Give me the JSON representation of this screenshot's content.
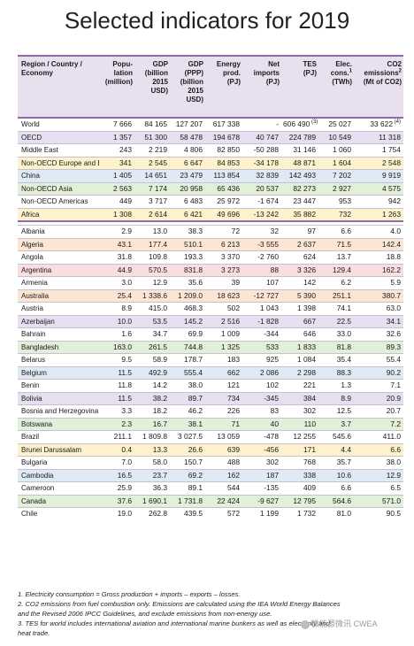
{
  "title": "Selected indicators for 2019",
  "header": {
    "col0": "Region / Country / Economy",
    "col1": "Popu-lation",
    "col1_unit": "(million)",
    "col2": "GDP",
    "col2_unit": "(billion 2015 USD)",
    "col3": "GDP (PPP)",
    "col3_unit": "(billion 2015 USD)",
    "col4": "Energy prod.",
    "col4_unit": "(PJ)",
    "col5": "Net imports",
    "col5_unit": "(PJ)",
    "col6": "TES",
    "col6_unit": "(PJ)",
    "col7": "Elec. cons.",
    "col7_sup": "1",
    "col7_unit": "(TWh)",
    "col8": "CO2 emissions",
    "col8_sup": "2",
    "col8_unit": "(Mt of CO2)"
  },
  "colors": {
    "header_bg": "#e8e0ef",
    "rule": "#8e6aa8",
    "palette": [
      "#ffffff",
      "#e6dff0",
      "#fbe6d4",
      "#e2efd9",
      "#dfeaf5",
      "#fdf2cc",
      "#f8dede"
    ]
  },
  "regions": [
    {
      "name": "World",
      "pop": "7 666",
      "gdp": "84 165",
      "gdpppp": "127 207",
      "prod": "617 338",
      "imp": "-",
      "tes": "606 490",
      "tes_note": "(3)",
      "elec": "25 027",
      "co2": "33 622",
      "co2_note": "(4)",
      "bg": 0
    },
    {
      "name": "OECD",
      "pop": "1 357",
      "gdp": "51 300",
      "gdpppp": "58 478",
      "prod": "194 678",
      "imp": "40 747",
      "tes": "224 789",
      "elec": "10 549",
      "co2": "11 318",
      "bg": 1
    },
    {
      "name": "Middle East",
      "pop": "243",
      "gdp": "2 219",
      "gdpppp": "4 806",
      "prod": "82 850",
      "imp": "-50 288",
      "tes": "31 146",
      "elec": "1 060",
      "co2": "1 754",
      "bg": 0
    },
    {
      "name": "Non-OECD Europe and Eurasia",
      "pop": "341",
      "gdp": "2 545",
      "gdpppp": "6 647",
      "prod": "84 853",
      "imp": "-34 178",
      "tes": "48 871",
      "elec": "1 604",
      "co2": "2 548",
      "bg": 5
    },
    {
      "name": "China",
      "pop": "1 405",
      "gdp": "14 651",
      "gdpppp": "23 479",
      "prod": "113 854",
      "imp": "32 839",
      "tes": "142 493",
      "elec": "7 202",
      "co2": "9 919",
      "bg": 4
    },
    {
      "name": "Non-OECD Asia",
      "pop": "2 563",
      "gdp": "7 174",
      "gdpppp": "20 958",
      "prod": "65 436",
      "imp": "20 537",
      "tes": "82 273",
      "elec": "2 927",
      "co2": "4 575",
      "bg": 3
    },
    {
      "name": "Non-OECD Americas",
      "pop": "449",
      "gdp": "3 717",
      "gdpppp": "6 483",
      "prod": "25 972",
      "imp": "-1 674",
      "tes": "23 447",
      "elec": "953",
      "co2": "942",
      "bg": 0
    },
    {
      "name": "Africa",
      "pop": "1 308",
      "gdp": "2 614",
      "gdpppp": "6 421",
      "prod": "49 696",
      "imp": "-13 242",
      "tes": "35 882",
      "elec": "732",
      "co2": "1 263",
      "bg": 5
    }
  ],
  "countries": [
    {
      "name": "Albania",
      "pop": "2.9",
      "gdp": "13.0",
      "gdpppp": "38.3",
      "prod": "72",
      "imp": "32",
      "tes": "97",
      "elec": "6.6",
      "co2": "4.0",
      "bg": 0
    },
    {
      "name": "Algeria",
      "pop": "43.1",
      "gdp": "177.4",
      "gdpppp": "510.1",
      "prod": "6 213",
      "imp": "-3 555",
      "tes": "2 637",
      "elec": "71.5",
      "co2": "142.4",
      "bg": 2
    },
    {
      "name": "Angola",
      "pop": "31.8",
      "gdp": "109.8",
      "gdpppp": "193.3",
      "prod": "3 370",
      "imp": "-2 760",
      "tes": "624",
      "elec": "13.7",
      "co2": "18.8",
      "bg": 0
    },
    {
      "name": "Argentina",
      "pop": "44.9",
      "gdp": "570.5",
      "gdpppp": "831.8",
      "prod": "3 273",
      "imp": "88",
      "tes": "3 326",
      "elec": "129.4",
      "co2": "162.2",
      "bg": 6
    },
    {
      "name": "Armenia",
      "pop": "3.0",
      "gdp": "12.9",
      "gdpppp": "35.6",
      "prod": "39",
      "imp": "107",
      "tes": "142",
      "elec": "6.2",
      "co2": "5.9",
      "bg": 0
    },
    {
      "name": "Australia",
      "pop": "25.4",
      "gdp": "1 338.6",
      "gdpppp": "1 209.0",
      "prod": "18 623",
      "imp": "-12 727",
      "tes": "5 390",
      "elec": "251.1",
      "co2": "380.7",
      "bg": 2
    },
    {
      "name": "Austria",
      "pop": "8.9",
      "gdp": "415.0",
      "gdpppp": "468.3",
      "prod": "502",
      "imp": "1 043",
      "tes": "1 398",
      "elec": "74.1",
      "co2": "63.0",
      "bg": 0
    },
    {
      "name": "Azerbaijan",
      "pop": "10.0",
      "gdp": "53.5",
      "gdpppp": "145.2",
      "prod": "2 516",
      "imp": "-1 828",
      "tes": "667",
      "elec": "22.5",
      "co2": "34.1",
      "bg": 1
    },
    {
      "name": "Bahrain",
      "pop": "1.6",
      "gdp": "34.7",
      "gdpppp": "69.9",
      "prod": "1 009",
      "imp": "-344",
      "tes": "646",
      "elec": "33.0",
      "co2": "32.6",
      "bg": 0
    },
    {
      "name": "Bangladesh",
      "pop": "163.0",
      "gdp": "261.5",
      "gdpppp": "744.8",
      "prod": "1 325",
      "imp": "533",
      "tes": "1 833",
      "elec": "81.8",
      "co2": "89.3",
      "bg": 3
    },
    {
      "name": "Belarus",
      "pop": "9.5",
      "gdp": "58.9",
      "gdpppp": "178.7",
      "prod": "183",
      "imp": "925",
      "tes": "1 084",
      "elec": "35.4",
      "co2": "55.4",
      "bg": 0
    },
    {
      "name": "Belgium",
      "pop": "11.5",
      "gdp": "492.9",
      "gdpppp": "555.4",
      "prod": "662",
      "imp": "2 086",
      "tes": "2 298",
      "elec": "88.3",
      "co2": "90.2",
      "bg": 4
    },
    {
      "name": "Benin",
      "pop": "11.8",
      "gdp": "14.2",
      "gdpppp": "38.0",
      "prod": "121",
      "imp": "102",
      "tes": "221",
      "elec": "1.3",
      "co2": "7.1",
      "bg": 0
    },
    {
      "name": "Bolivia",
      "pop": "11.5",
      "gdp": "38.2",
      "gdpppp": "89.7",
      "prod": "734",
      "imp": "-345",
      "tes": "384",
      "elec": "8.9",
      "co2": "20.9",
      "bg": 1
    },
    {
      "name": "Bosnia and Herzegovina",
      "pop": "3.3",
      "gdp": "18.2",
      "gdpppp": "46.2",
      "prod": "226",
      "imp": "83",
      "tes": "302",
      "elec": "12.5",
      "co2": "20.7",
      "bg": 0
    },
    {
      "name": "Botswana",
      "pop": "2.3",
      "gdp": "16.7",
      "gdpppp": "38.1",
      "prod": "71",
      "imp": "40",
      "tes": "110",
      "elec": "3.7",
      "co2": "7.2",
      "bg": 3
    },
    {
      "name": "Brazil",
      "pop": "211.1",
      "gdp": "1 809.8",
      "gdpppp": "3 027.5",
      "prod": "13 059",
      "imp": "-478",
      "tes": "12 255",
      "elec": "545.6",
      "co2": "411.0",
      "bg": 0
    },
    {
      "name": "Brunei Darussalam",
      "pop": "0.4",
      "gdp": "13.3",
      "gdpppp": "26.6",
      "prod": "639",
      "imp": "-456",
      "tes": "171",
      "elec": "4.4",
      "co2": "6.6",
      "bg": 5
    },
    {
      "name": "Bulgaria",
      "pop": "7.0",
      "gdp": "58.0",
      "gdpppp": "150.7",
      "prod": "488",
      "imp": "302",
      "tes": "768",
      "elec": "35.7",
      "co2": "38.0",
      "bg": 0
    },
    {
      "name": "Cambodia",
      "pop": "16.5",
      "gdp": "23.7",
      "gdpppp": "69.2",
      "prod": "162",
      "imp": "187",
      "tes": "338",
      "elec": "10.6",
      "co2": "12.9",
      "bg": 4
    },
    {
      "name": "Cameroon",
      "pop": "25.9",
      "gdp": "36.3",
      "gdpppp": "89.1",
      "prod": "544",
      "imp": "-135",
      "tes": "409",
      "elec": "6.6",
      "co2": "6.5",
      "bg": 0
    },
    {
      "name": "Canada",
      "pop": "37.6",
      "gdp": "1 690.1",
      "gdpppp": "1 731.8",
      "prod": "22 424",
      "imp": "-9 627",
      "tes": "12 795",
      "elec": "564.6",
      "co2": "571.0",
      "bg": 3
    },
    {
      "name": "Chile",
      "pop": "19.0",
      "gdp": "262.8",
      "gdpppp": "439.5",
      "prod": "572",
      "imp": "1 199",
      "tes": "1 732",
      "elec": "81.0",
      "co2": "90.5",
      "bg": 0
    }
  ],
  "notes": [
    "1. Electricity consumption = Gross production + imports – exports – losses.",
    "2. CO2 emissions from fuel combustion only. Emissions are calculated using the IEA World Energy Balances",
    "and the Revised 2006 IPCC Guidelines, and exclude emissions from non-energy use.",
    "3. TES for world includes international aviation and international marine bunkers as well as electricity and",
    "heat trade."
  ],
  "watermark": "微能源微讯 CWEA"
}
